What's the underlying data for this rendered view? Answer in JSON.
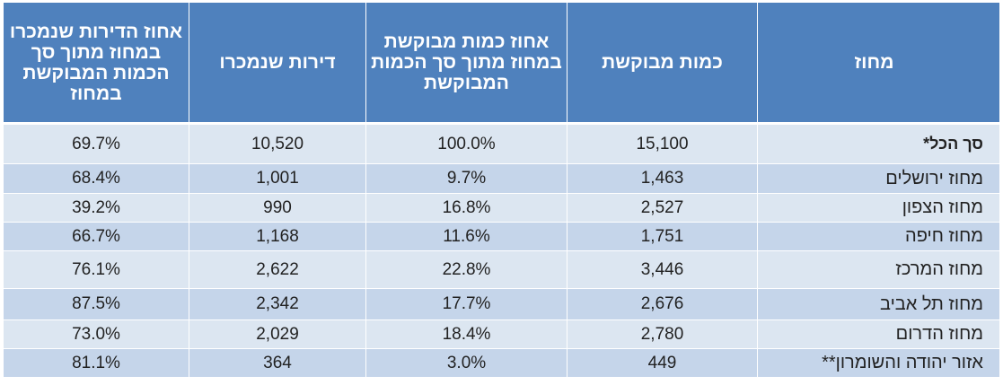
{
  "table": {
    "headers": [
      "מחוז",
      "כמות מבוקשת",
      "אחוז כמות מבוקשת במחוז מתוך סך הכמות המבוקשת",
      "דירות שנמכרו",
      "אחוז הדירות שנמכרו במחוז מתוך סך הכמות המבוקשת במחוז"
    ],
    "rows": [
      {
        "district": "סך הכל*",
        "requested": "15,100",
        "pct_requested": "100.0%",
        "sold": "10,520",
        "pct_sold": "69.7%"
      },
      {
        "district": "מחוז ירושלים",
        "requested": "1,463",
        "pct_requested": "9.7%",
        "sold": "1,001",
        "pct_sold": "68.4%"
      },
      {
        "district": "מחוז הצפון",
        "requested": "2,527",
        "pct_requested": "16.8%",
        "sold": "990",
        "pct_sold": "39.2%"
      },
      {
        "district": "מחוז חיפה",
        "requested": "1,751",
        "pct_requested": "11.6%",
        "sold": "1,168",
        "pct_sold": "66.7%"
      },
      {
        "district": "מחוז המרכז",
        "requested": "3,446",
        "pct_requested": "22.8%",
        "sold": "2,622",
        "pct_sold": "76.1%"
      },
      {
        "district": "מחוז תל אביב",
        "requested": "2,676",
        "pct_requested": "17.7%",
        "sold": "2,342",
        "pct_sold": "87.5%"
      },
      {
        "district": "מחוז הדרום",
        "requested": "2,780",
        "pct_requested": "18.4%",
        "sold": "2,029",
        "pct_sold": "73.0%"
      },
      {
        "district": "אזור יהודה והשומרון**",
        "requested": "449",
        "pct_requested": "3.0%",
        "sold": "364",
        "pct_sold": "81.1%"
      }
    ]
  }
}
